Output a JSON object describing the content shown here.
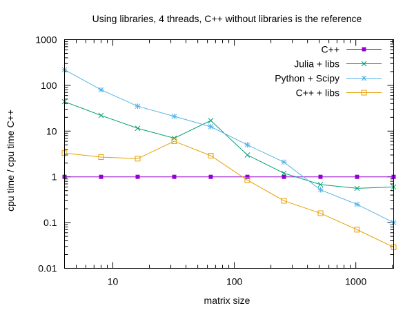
{
  "chart_data": {
    "type": "line",
    "title": "Using libraries, 4 threads, C++ without libraries is the reference",
    "xlabel": "matrix size",
    "ylabel": "cpu time / cpu time C++",
    "x_scale": "log",
    "y_scale": "log",
    "xlim": [
      4,
      2048
    ],
    "ylim": [
      0.01,
      1000
    ],
    "x_ticks": [
      {
        "value": 10,
        "label": "10"
      },
      {
        "value": 100,
        "label": "100"
      },
      {
        "value": 1000,
        "label": "1000"
      }
    ],
    "y_ticks": [
      {
        "value": 0.01,
        "label": "0.01"
      },
      {
        "value": 0.1,
        "label": "0.1"
      },
      {
        "value": 1,
        "label": "1"
      },
      {
        "value": 10,
        "label": "10"
      },
      {
        "value": 100,
        "label": "100"
      },
      {
        "value": 1000,
        "label": "1000"
      }
    ],
    "legend_position": "top-right",
    "x": [
      4,
      8,
      16,
      32,
      64,
      128,
      256,
      512,
      1024,
      2048
    ],
    "series": [
      {
        "name": "C++",
        "color": "#9400d3",
        "marker": "filled-square",
        "values": [
          1,
          1,
          1,
          1,
          1,
          1,
          1,
          1,
          1,
          1
        ]
      },
      {
        "name": "Julia + libs",
        "color": "#009e73",
        "marker": "cross",
        "values": [
          44,
          22,
          11.5,
          7,
          17,
          3,
          1.2,
          0.68,
          0.56,
          0.6
        ]
      },
      {
        "name": "Python + Scipy",
        "color": "#56b4e9",
        "marker": "star",
        "values": [
          220,
          80,
          35,
          21,
          12.5,
          5,
          2.1,
          0.52,
          0.25,
          0.1
        ]
      },
      {
        "name": "C++ +  libs",
        "color": "#e69f00",
        "marker": "open-square",
        "values": [
          3.3,
          2.7,
          2.5,
          6,
          2.9,
          0.85,
          0.3,
          0.16,
          0.07,
          0.029
        ]
      }
    ]
  }
}
